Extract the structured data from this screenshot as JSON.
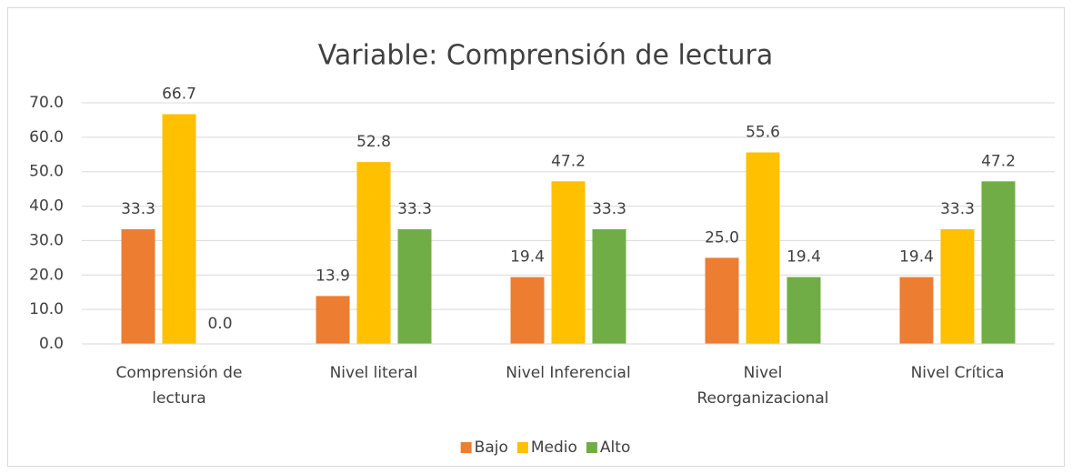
{
  "chart_data": {
    "type": "bar",
    "title": "Variable: Comprensión de lectura",
    "categories": [
      "Comprensión de lectura",
      "Nivel literal",
      "Nivel Inferencial",
      "Nivel Reorganizacional",
      "Nivel Crítica"
    ],
    "series": [
      {
        "name": "Bajo",
        "color": "#ed7d31",
        "values": [
          33.3,
          13.9,
          19.4,
          25.0,
          19.4
        ],
        "value_labels": [
          "33.3",
          "13.9",
          "19.4",
          "25.0",
          "19.4"
        ]
      },
      {
        "name": "Medio",
        "color": "#ffc000",
        "values": [
          66.7,
          52.8,
          47.2,
          55.6,
          33.3
        ],
        "value_labels": [
          "66.7",
          "52.8",
          "47.2",
          "55.6",
          "33.3"
        ]
      },
      {
        "name": "Alto",
        "color": "#70ad47",
        "values": [
          0.0,
          33.3,
          33.3,
          19.4,
          47.2
        ],
        "value_labels": [
          "0.0",
          "33.3",
          "33.3",
          "19.4",
          "47.2"
        ]
      }
    ],
    "ylim": [
      0,
      70
    ],
    "yticks": [
      {
        "value": 0,
        "label": "0.0"
      },
      {
        "value": 10,
        "label": "10.0"
      },
      {
        "value": 20,
        "label": "20.0"
      },
      {
        "value": 30,
        "label": "30.0"
      },
      {
        "value": 40,
        "label": "40.0"
      },
      {
        "value": 50,
        "label": "50.0"
      },
      {
        "value": 60,
        "label": "60.0"
      },
      {
        "value": 70,
        "label": "70.0"
      }
    ],
    "grid": true,
    "legend": "bottom"
  }
}
